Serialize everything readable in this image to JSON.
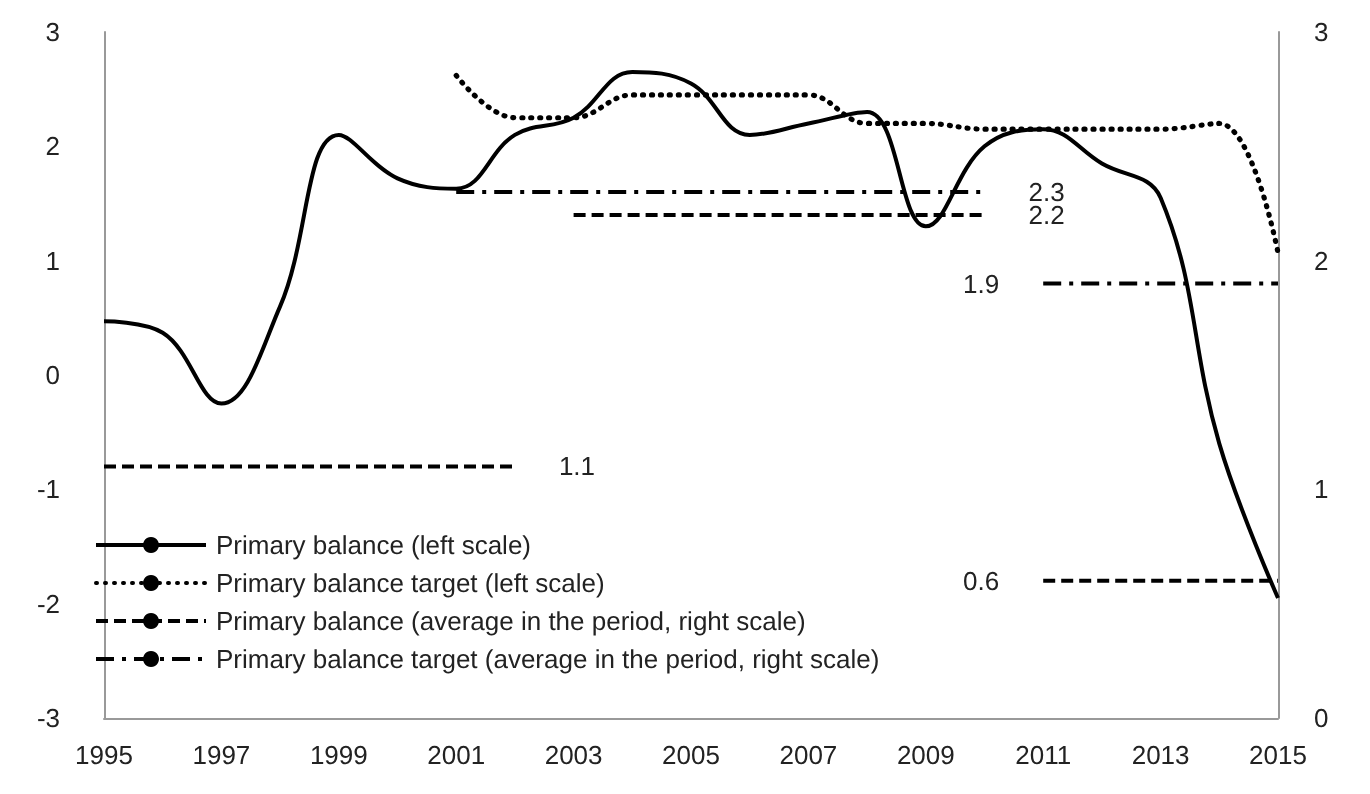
{
  "chart_data": {
    "type": "line",
    "x": [
      1995,
      1996,
      1997,
      1998,
      1999,
      2000,
      2001,
      2002,
      2003,
      2004,
      2005,
      2006,
      2007,
      2008,
      2009,
      2010,
      2011,
      2012,
      2013,
      2014,
      2015
    ],
    "series": [
      {
        "name": "Primary balance (left scale)",
        "color": "#000000",
        "line_style": "solid",
        "values": [
          0.47,
          0.37,
          -0.25,
          0.6,
          2.1,
          1.72,
          1.63,
          2.1,
          2.25,
          2.65,
          2.55,
          2.1,
          2.2,
          2.3,
          1.3,
          2.0,
          2.15,
          1.85,
          1.55,
          -0.6,
          -1.95
        ]
      },
      {
        "name": "Primary balance target (left scale)",
        "color": "#000000",
        "line_style": "dotted",
        "x": [
          2001,
          2002,
          2003,
          2004,
          2005,
          2006,
          2007,
          2008,
          2009,
          2010,
          2011,
          2012,
          2013,
          2014,
          2015
        ],
        "values": [
          2.62,
          2.25,
          2.25,
          2.45,
          2.45,
          2.45,
          2.45,
          2.2,
          2.2,
          2.15,
          2.15,
          2.15,
          2.15,
          2.2,
          1.07
        ]
      },
      {
        "name": "Primary balance (average in the period, right scale)",
        "color": "#000000",
        "line_style": "dashed",
        "axis": "y2",
        "x": [
          1995,
          2002,
          2002.5,
          2003,
          2010,
          2010.5,
          2011,
          2015
        ],
        "values": [
          1.1,
          1.1,
          null,
          2.2,
          2.2,
          null,
          0.6,
          0.6
        ],
        "value_labels": [
          null,
          "1.1",
          null,
          null,
          "2.2",
          null,
          "0.6",
          null
        ]
      },
      {
        "name": "Primary balance target (average in the period, right scale)",
        "color": "#000000",
        "line_style": "dashdot",
        "axis": "y2",
        "x": [
          2001,
          2010,
          2010.5,
          2011,
          2015
        ],
        "values": [
          2.3,
          2.3,
          null,
          1.9,
          1.9
        ],
        "value_labels": [
          null,
          "2.3",
          null,
          "1.9",
          null
        ]
      }
    ],
    "xlim": [
      1995,
      2015
    ],
    "xticks": [
      1995,
      1997,
      1999,
      2001,
      2003,
      2005,
      2007,
      2009,
      2011,
      2013,
      2015
    ],
    "ylim": [
      -3,
      3
    ],
    "yticks": [
      -3,
      -2,
      -1,
      0,
      1,
      2,
      3
    ],
    "y2lim": [
      0,
      3
    ],
    "y2ticks": [
      0,
      1,
      2,
      3
    ],
    "grid": false,
    "legend": "bottom left",
    "marker": "none"
  }
}
